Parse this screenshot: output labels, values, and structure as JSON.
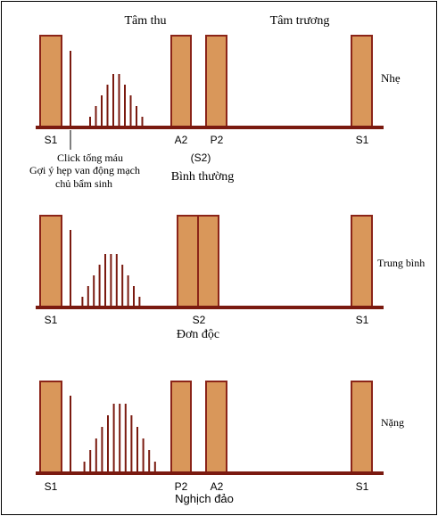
{
  "header": {
    "systole_label": "Tâm thu",
    "diastole_label": "Tâm trương"
  },
  "panels": [
    {
      "id": "mild",
      "severity_label": "Nhẹ",
      "bottom_labels": {
        "s1_left": "S1",
        "a": "A2",
        "b": "P2",
        "s1_right": "S1"
      },
      "notes": {
        "click": "Click tống máu",
        "suggest_1": "Gợi ý hẹp van động mạch",
        "suggest_2": "chủ bẩm sinh",
        "s2": "(S2)",
        "split": "Bình thường"
      },
      "murmur_levels": [
        0,
        0,
        1,
        2,
        3,
        4,
        5,
        5,
        4,
        3,
        2,
        1
      ]
    },
    {
      "id": "moderate",
      "severity_label": "Trung bình",
      "bottom_labels": {
        "s1_left": "S1",
        "s2": "S2",
        "s1_right": "S1"
      },
      "notes": {
        "split": "Đơn độc"
      },
      "murmur_levels": [
        0,
        1,
        2,
        3,
        4,
        5,
        5,
        5,
        4,
        3,
        2,
        1
      ]
    },
    {
      "id": "severe",
      "severity_label": "Nặng",
      "bottom_labels": {
        "s1_left": "S1",
        "a": "P2",
        "b": "A2",
        "s1_right": "S1"
      },
      "notes": {
        "split": "Nghịch đảo"
      },
      "murmur_levels": [
        0,
        1,
        2,
        3,
        4,
        5,
        6,
        6,
        6,
        5,
        4,
        3,
        2,
        1
      ]
    }
  ],
  "colors": {
    "block_fill": "#d9975a",
    "block_stroke": "#8b2418",
    "line": "#7a1a10",
    "text": "#000000"
  }
}
